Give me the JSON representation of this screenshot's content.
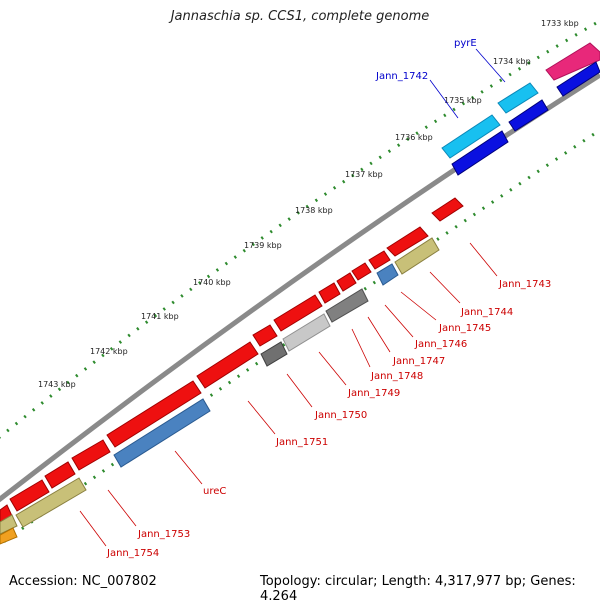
{
  "title": "Jannaschia sp. CCS1, complete genome",
  "footer": {
    "accession": "Accession: NC_007802",
    "stats": "Topology: circular; Length: 4,317,977 bp; Genes: 4,264"
  },
  "colors": {
    "background": "#ffffff",
    "backbone": "#8a8a8a",
    "ticks": "#2e8b2e",
    "label_red": "#cc0000",
    "label_blue": "#0000cc"
  },
  "scale_labels": [
    "1733 kbp",
    "1734 kbp",
    "1735 kbp",
    "1736 kbp",
    "1737 kbp",
    "1738 kbp",
    "1739 kbp",
    "1740 kbp",
    "1741 kbp",
    "1742 kbp",
    "1743 kbp"
  ],
  "gene_labels": {
    "pyrE": "pyrE",
    "jann1742": "Jann_1742",
    "jann1743": "Jann_1743",
    "jann1744": "Jann_1744",
    "jann1745": "Jann_1745",
    "jann1746": "Jann_1746",
    "jann1747": "Jann_1747",
    "jann1748": "Jann_1748",
    "jann1749": "Jann_1749",
    "jann1750": "Jann_1750",
    "jann1751": "Jann_1751",
    "ureC": "ureC",
    "jann1753": "Jann_1753",
    "jann1754": "Jann_1754"
  }
}
